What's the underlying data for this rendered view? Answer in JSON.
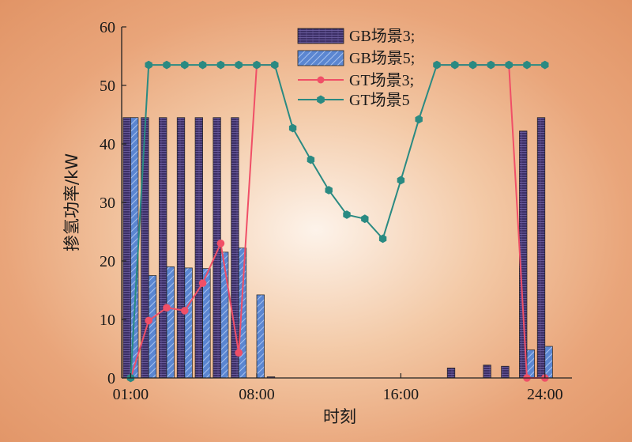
{
  "chart_data": {
    "type": "bar",
    "xlabel": "时刻",
    "ylabel": "掺氢功率/kW",
    "ylim": [
      0,
      60
    ],
    "yticks": [
      0,
      10,
      20,
      30,
      40,
      50,
      60
    ],
    "xlim": [
      0.5,
      25.5
    ],
    "xticks": [
      1,
      8,
      16,
      24
    ],
    "xticklabels": [
      "01:00",
      "08:00",
      "16:00",
      "24:00"
    ],
    "grid": false,
    "legend_position": "top-center",
    "hours": [
      1,
      2,
      3,
      4,
      5,
      6,
      7,
      8,
      9,
      10,
      11,
      12,
      13,
      14,
      15,
      16,
      17,
      18,
      19,
      20,
      21,
      22,
      23,
      24
    ],
    "series": [
      {
        "name": "GB场景3;",
        "kind": "bar",
        "color": "#3c2f66",
        "values": [
          44.5,
          44.5,
          44.5,
          44.5,
          44.5,
          44.5,
          44.5,
          0,
          0.2,
          0,
          0,
          0,
          0,
          0,
          0,
          0,
          0,
          0,
          1.7,
          0,
          2.2,
          2.0,
          42.2,
          44.5
        ]
      },
      {
        "name": "GB场景5;",
        "kind": "bar",
        "color": "#5b86d1",
        "values": [
          44.5,
          17.5,
          19.0,
          18.8,
          18.7,
          21.5,
          22.2,
          14.2,
          0,
          0,
          0,
          0,
          0,
          0,
          0,
          0,
          0,
          0,
          0,
          0,
          0,
          0,
          4.8,
          5.4
        ]
      },
      {
        "name": "GT场景3;",
        "kind": "line",
        "color": "#f04f67",
        "values": [
          0,
          9.8,
          12.0,
          11.5,
          16.2,
          23.0,
          4.3,
          53.5,
          53.5,
          null,
          null,
          null,
          null,
          null,
          null,
          null,
          null,
          53.5,
          53.5,
          53.5,
          53.5,
          53.5,
          0,
          0
        ]
      },
      {
        "name": "GT场景5",
        "kind": "line",
        "color": "#2a8a82",
        "values": [
          0,
          53.5,
          53.5,
          53.5,
          53.5,
          53.5,
          53.5,
          53.5,
          53.5,
          42.7,
          37.3,
          32.1,
          27.9,
          27.2,
          23.8,
          33.8,
          44.2,
          53.5,
          53.5,
          53.5,
          53.5,
          53.5,
          53.5,
          53.5
        ]
      }
    ]
  }
}
